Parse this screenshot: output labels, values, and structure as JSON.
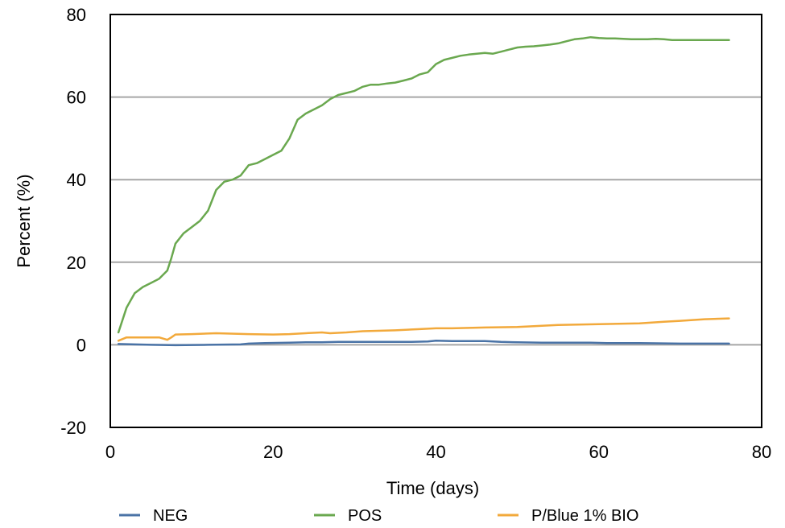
{
  "chart_data": {
    "type": "line",
    "title": "",
    "xlabel": "Time (days)",
    "ylabel": "Percent (%)",
    "xlim": [
      0,
      80
    ],
    "ylim": [
      -20,
      80
    ],
    "xticks": [
      0,
      20,
      40,
      60,
      80
    ],
    "yticks": [
      -20,
      0,
      20,
      40,
      60,
      80
    ],
    "grid": "horizontal",
    "legend_position": "bottom",
    "series": [
      {
        "name": "NEG",
        "color": "#4a73a6",
        "x": [
          1,
          3,
          5,
          8,
          12,
          16,
          17,
          19,
          22,
          24,
          26,
          28,
          31,
          34,
          37,
          39,
          40,
          42,
          44,
          46,
          48,
          50,
          53,
          55,
          57,
          59,
          61,
          65,
          70,
          76
        ],
        "y": [
          0.2,
          0.1,
          0.0,
          -0.1,
          0.0,
          0.1,
          0.3,
          0.4,
          0.5,
          0.6,
          0.6,
          0.7,
          0.7,
          0.7,
          0.7,
          0.8,
          1.0,
          0.9,
          0.9,
          0.9,
          0.7,
          0.6,
          0.5,
          0.5,
          0.5,
          0.5,
          0.4,
          0.4,
          0.3,
          0.3
        ]
      },
      {
        "name": "POS",
        "color": "#6aa84f",
        "x": [
          1,
          2,
          3,
          4,
          5,
          6,
          7,
          7.5,
          8,
          9,
          10,
          11,
          12,
          13,
          14,
          15,
          16,
          17,
          18,
          19,
          20,
          21,
          22,
          23,
          24,
          25,
          26,
          27,
          28,
          29,
          30,
          31,
          32,
          33,
          34,
          35,
          36,
          37,
          38,
          39,
          40,
          41,
          42,
          43,
          44,
          45,
          46,
          47,
          48,
          49,
          50,
          51,
          52,
          53,
          54,
          55,
          56,
          57,
          58,
          59,
          60,
          61,
          62,
          63,
          64,
          65,
          66,
          67,
          68,
          69,
          70,
          72,
          74,
          76
        ],
        "y": [
          3,
          9,
          12.5,
          14,
          15,
          16,
          18,
          21,
          24.5,
          27,
          28.5,
          30,
          32.5,
          37.5,
          39.5,
          40,
          41,
          43.5,
          44,
          45,
          46,
          47,
          50,
          54.5,
          56,
          57,
          58,
          59.5,
          60.5,
          61,
          61.5,
          62.5,
          63,
          63,
          63.3,
          63.5,
          64,
          64.5,
          65.5,
          66,
          68,
          69,
          69.5,
          70,
          70.3,
          70.5,
          70.7,
          70.5,
          71,
          71.5,
          72,
          72.2,
          72.3,
          72.5,
          72.7,
          73,
          73.5,
          74,
          74.2,
          74.5,
          74.3,
          74.2,
          74.2,
          74.1,
          74,
          74,
          74,
          74.1,
          74,
          73.8,
          73.8,
          73.8,
          73.8,
          73.8
        ]
      },
      {
        "name": "P/Blue 1% BIO",
        "color": "#f2a93b",
        "x": [
          1,
          2,
          4,
          6,
          7,
          7.5,
          8,
          10,
          13,
          17,
          20,
          22,
          24,
          26,
          27,
          29,
          31,
          35,
          38,
          40,
          42,
          46,
          50,
          53,
          55,
          60,
          65,
          68,
          70,
          73,
          76
        ],
        "y": [
          1.0,
          1.8,
          1.8,
          1.8,
          1.2,
          1.8,
          2.5,
          2.6,
          2.8,
          2.6,
          2.5,
          2.6,
          2.8,
          3.0,
          2.8,
          3.0,
          3.3,
          3.5,
          3.8,
          4.0,
          4.0,
          4.2,
          4.3,
          4.6,
          4.8,
          5.0,
          5.2,
          5.6,
          5.8,
          6.2,
          6.4
        ]
      }
    ]
  }
}
